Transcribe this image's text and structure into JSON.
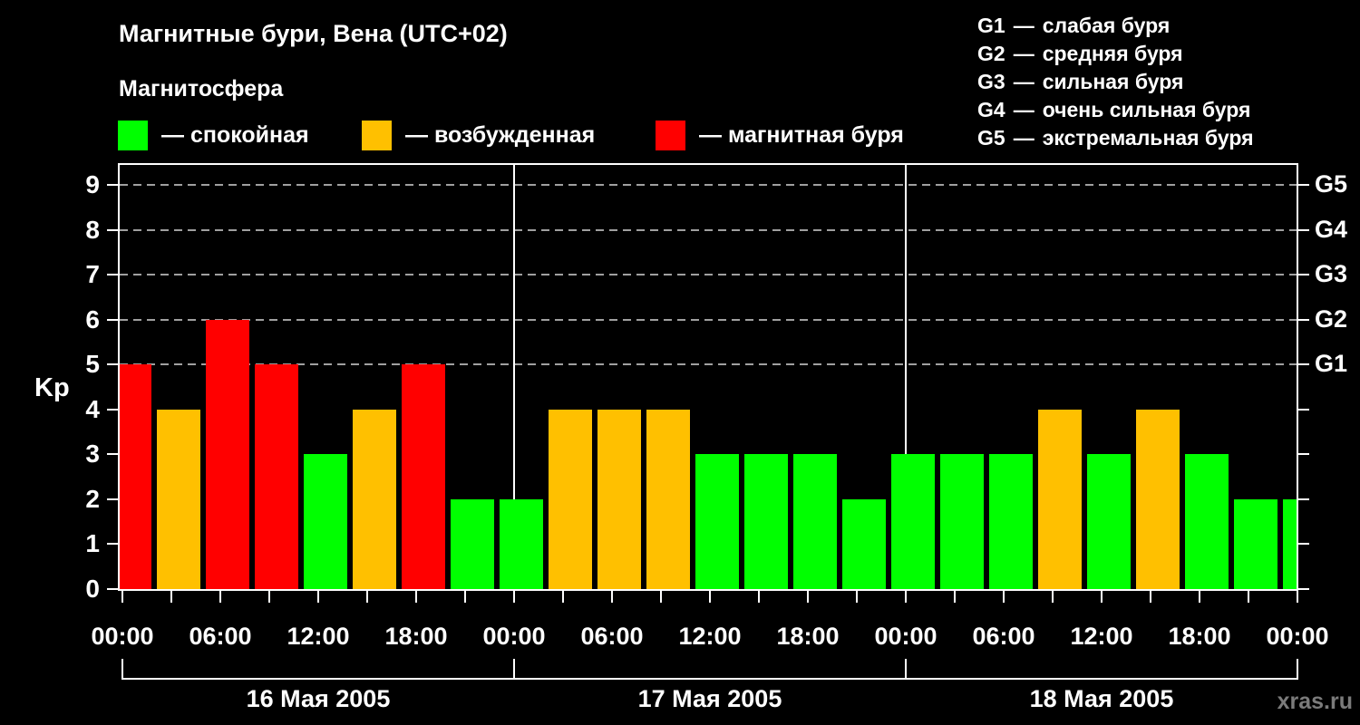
{
  "page": {
    "background": "#000000",
    "text_color": "#ffffff"
  },
  "header": {
    "title": "Магнитные бури, Вена (UTC+02)",
    "subtitle": "Магнитосфера"
  },
  "legend": {
    "items": [
      {
        "name": "quiet",
        "swatch_color": "#00ff00",
        "label": "— спокойная"
      },
      {
        "name": "excited",
        "swatch_color": "#ffc000",
        "label": "— возбужденная"
      },
      {
        "name": "storm",
        "swatch_color": "#ff0000",
        "label": "— магнитная буря"
      }
    ]
  },
  "g_legend": {
    "separator": "—",
    "items": [
      {
        "code": "G1",
        "desc": "слабая буря"
      },
      {
        "code": "G2",
        "desc": "средняя буря"
      },
      {
        "code": "G3",
        "desc": "сильная буря"
      },
      {
        "code": "G4",
        "desc": "очень сильная буря"
      },
      {
        "code": "G5",
        "desc": "экстремальная буря"
      }
    ]
  },
  "watermark": "xras.ru",
  "chart_data": {
    "type": "bar",
    "title": "Магнитные бури, Вена (UTC+02)",
    "ylabel": "Kp",
    "ylim": [
      0,
      9.4
    ],
    "yticks": [
      0,
      1,
      2,
      3,
      4,
      5,
      6,
      7,
      8,
      9
    ],
    "gridline_levels_kp": [
      5,
      6,
      7,
      8,
      9
    ],
    "right_axis_labels": [
      {
        "kp": 5,
        "label": "G1"
      },
      {
        "kp": 6,
        "label": "G2"
      },
      {
        "kp": 7,
        "label": "G3"
      },
      {
        "kp": 8,
        "label": "G4"
      },
      {
        "kp": 9,
        "label": "G5"
      }
    ],
    "bar_interval_hours": 3,
    "kp_values": [
      5,
      4,
      6,
      5,
      3,
      4,
      5,
      2,
      2,
      4,
      4,
      4,
      3,
      3,
      3,
      2,
      3,
      3,
      3,
      4,
      3,
      4,
      3,
      2,
      2
    ],
    "days": [
      {
        "date": "16 Мая 2005",
        "start_hour": 0,
        "kp": [
          5,
          4,
          6,
          5,
          3,
          4,
          5,
          2
        ]
      },
      {
        "date": "17 Мая 2005",
        "start_hour": 24,
        "kp": [
          2,
          4,
          4,
          4,
          3,
          3,
          3,
          2
        ]
      },
      {
        "date": "18 Мая 2005",
        "start_hour": 48,
        "kp": [
          3,
          3,
          3,
          4,
          3,
          4,
          3,
          2
        ]
      }
    ],
    "trailing_bar_kp": 2,
    "bar_colors_rule": {
      "kp_le_3": "#00ff00",
      "kp_eq_4": "#ffc000",
      "kp_ge_5": "#ff0000"
    },
    "x_tick_labels": [
      {
        "hour": 0,
        "label": "00:00"
      },
      {
        "hour": 6,
        "label": "06:00"
      },
      {
        "hour": 12,
        "label": "12:00"
      },
      {
        "hour": 18,
        "label": "18:00"
      },
      {
        "hour": 24,
        "label": "00:00"
      },
      {
        "hour": 30,
        "label": "06:00"
      },
      {
        "hour": 36,
        "label": "12:00"
      },
      {
        "hour": 42,
        "label": "18:00"
      },
      {
        "hour": 48,
        "label": "00:00"
      },
      {
        "hour": 54,
        "label": "06:00"
      },
      {
        "hour": 60,
        "label": "12:00"
      },
      {
        "hour": 66,
        "label": "18:00"
      },
      {
        "hour": 72,
        "label": "00:00"
      }
    ],
    "minor_tick_hours_step": 3,
    "day_divider_hours": [
      24,
      48
    ],
    "grid_on": true,
    "grid_color": "#a0a0a0",
    "axis_color": "#ffffff",
    "legend_position": "top-left"
  }
}
